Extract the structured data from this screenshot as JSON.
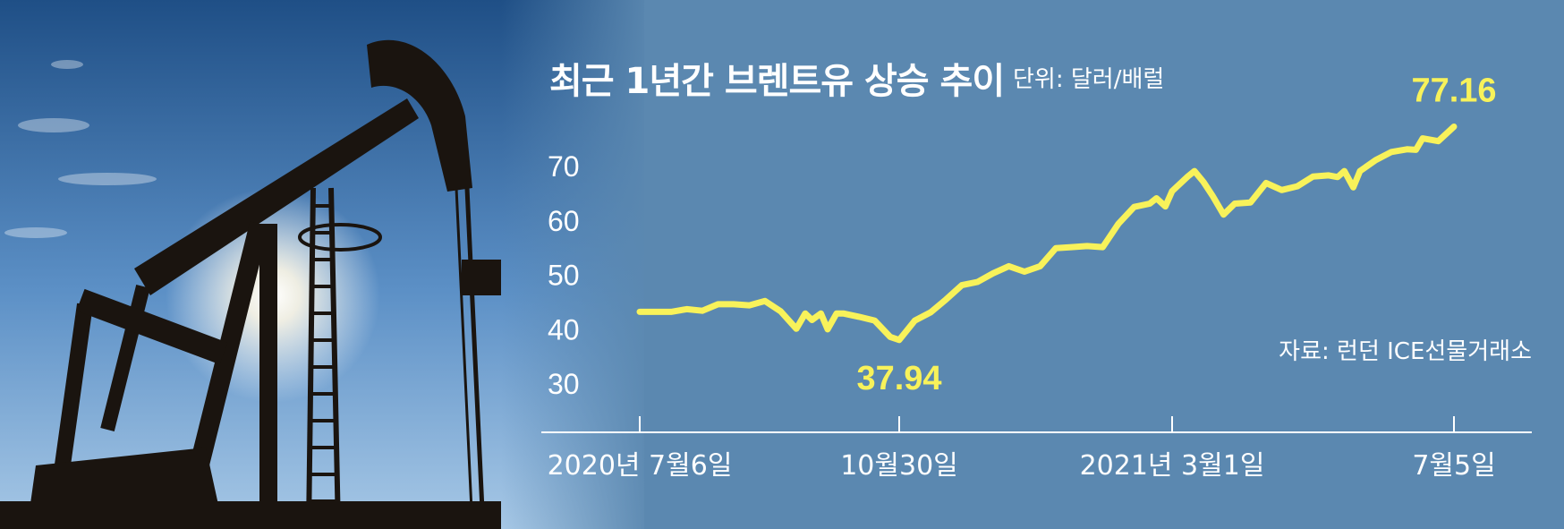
{
  "header": {
    "title": "최근 1년간 브렌트유 상승 추이",
    "unit": "단위: 달러/배럴",
    "source": "자료: 런던 ICE선물거래소"
  },
  "photo": {
    "subject": "oil pumpjack silhouette against sunlit blue sky",
    "icon": "pumpjack-icon"
  },
  "colors": {
    "background": "#5b88b0",
    "line": "#f8f25a",
    "text": "#ffffff"
  },
  "chart_data": {
    "type": "line",
    "title": "최근 1년간 브렌트유 상승 추이",
    "ylabel": "단위: 달러/배럴",
    "xlabel": "",
    "ylim": [
      30,
      77
    ],
    "yticks": [
      30,
      40,
      50,
      60,
      70
    ],
    "xticks": [
      {
        "label": "2020년 7월6일",
        "date": "2020-07-06"
      },
      {
        "label": "10월30일",
        "date": "2020-10-30"
      },
      {
        "label": "2021년 3월1일",
        "date": "2021-03-01"
      },
      {
        "label": "7월5일",
        "date": "2021-07-05"
      }
    ],
    "grid": false,
    "series": [
      {
        "x": [
          "2020-07-06",
          "2020-07-13",
          "2020-07-20",
          "2020-07-27",
          "2020-08-03",
          "2020-08-10",
          "2020-08-17",
          "2020-08-24",
          "2020-08-31",
          "2020-09-07",
          "2020-09-14",
          "2020-09-18",
          "2020-09-21",
          "2020-09-25",
          "2020-09-28",
          "2020-10-02",
          "2020-10-05",
          "2020-10-12",
          "2020-10-19",
          "2020-10-26",
          "2020-10-30",
          "2020-11-06",
          "2020-11-13",
          "2020-11-20",
          "2020-11-27",
          "2020-12-04",
          "2020-12-11",
          "2020-12-18",
          "2020-12-25",
          "2021-01-01",
          "2021-01-08",
          "2021-01-15",
          "2021-01-22",
          "2021-01-29",
          "2021-02-05",
          "2021-02-12",
          "2021-02-19",
          "2021-02-22",
          "2021-02-26",
          "2021-03-01",
          "2021-03-08",
          "2021-03-11",
          "2021-03-15",
          "2021-03-19",
          "2021-03-24",
          "2021-03-29",
          "2021-04-05",
          "2021-04-12",
          "2021-04-19",
          "2021-04-26",
          "2021-05-03",
          "2021-05-10",
          "2021-05-14",
          "2021-05-17",
          "2021-05-21",
          "2021-05-24",
          "2021-05-31",
          "2021-06-07",
          "2021-06-14",
          "2021-06-18",
          "2021-06-21",
          "2021-06-28",
          "2021-07-05"
        ],
        "values": [
          43.1,
          43.1,
          43.1,
          43.6,
          43.3,
          44.5,
          44.5,
          44.3,
          45.1,
          43.2,
          40.0,
          42.8,
          41.6,
          42.8,
          39.9,
          42.8,
          42.8,
          42.2,
          41.5,
          38.5,
          37.94,
          41.5,
          43.0,
          45.4,
          48.0,
          48.6,
          50.2,
          51.5,
          50.5,
          51.5,
          54.8,
          55.0,
          55.2,
          55.0,
          59.3,
          62.4,
          63.0,
          64.0,
          62.5,
          65.3,
          68.0,
          69.0,
          67.0,
          64.5,
          61.0,
          63.0,
          63.2,
          66.8,
          65.5,
          66.2,
          68.0,
          68.2,
          67.9,
          69.0,
          66.0,
          69.0,
          71.0,
          72.5,
          73.0,
          72.9,
          75.0,
          74.5,
          77.16
        ]
      }
    ],
    "annotations": [
      {
        "label": "37.94",
        "x": "2020-10-30",
        "y": 37.94
      },
      {
        "label": "77.16",
        "x": "2021-07-05",
        "y": 77.16
      }
    ]
  }
}
